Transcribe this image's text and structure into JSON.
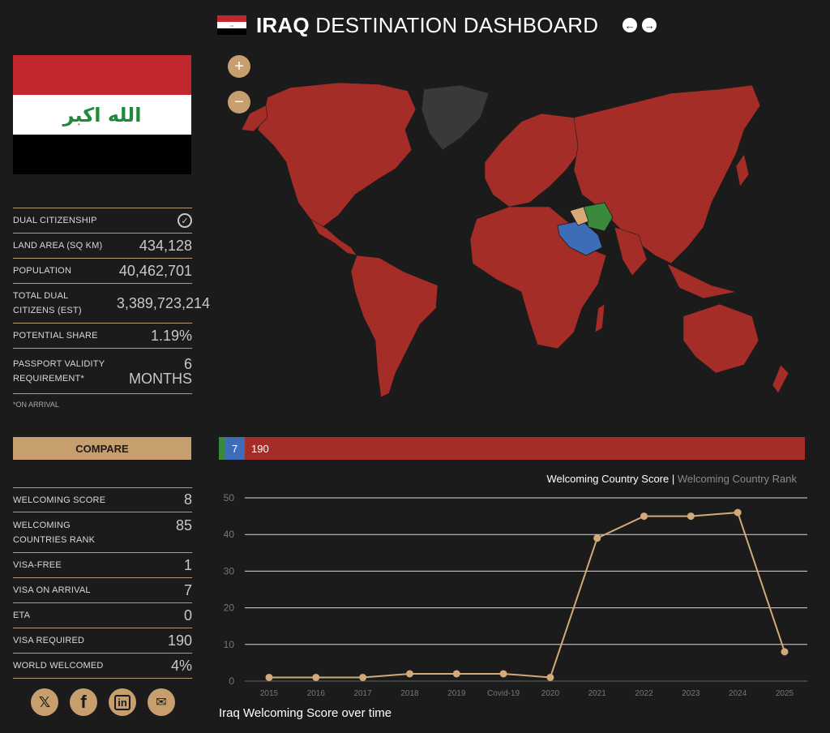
{
  "header": {
    "title_bold": "IRAQ",
    "title_rest": " DESTINATION DASHBOARD",
    "prev_icon": "arrow-left-icon",
    "next_icon": "arrow-right-icon"
  },
  "flag": {
    "colors": [
      "#c1272d",
      "#ffffff",
      "#000000"
    ],
    "emblem_color": "#1e8a3a",
    "emblem_text": "الله اكبر"
  },
  "profile": {
    "dual_citizenship": {
      "label": "DUAL CITIZENSHIP",
      "icon": "check-circle-icon"
    },
    "land_area": {
      "label": "LAND AREA (SQ KM)",
      "value": "434,128"
    },
    "population": {
      "label": "POPULATION",
      "value": "40,462,701"
    },
    "total_dual": {
      "label": "TOTAL DUAL CITIZENS (EST)",
      "value": "3,389,723,214"
    },
    "potential_share": {
      "label": "POTENTIAL SHARE",
      "value": "1.19%"
    },
    "passport_validity": {
      "label": "PASSPORT VALIDITY REQUIREMENT*",
      "value": "6 MONTHS"
    },
    "note": "*ON ARRIVAL"
  },
  "compare_label": "COMPARE",
  "welcoming": {
    "score": {
      "label": "WELCOMING SCORE",
      "value": "8"
    },
    "rank": {
      "label": "WELCOMING COUNTRIES RANK",
      "value": "85"
    },
    "visa_free": {
      "label": "VISA-FREE",
      "value": "1"
    },
    "visa_on_arrival": {
      "label": "VISA ON ARRIVAL",
      "value": "7"
    },
    "eta": {
      "label": "ETA",
      "value": "0"
    },
    "visa_required": {
      "label": "VISA REQUIRED",
      "value": "190"
    },
    "world_welcomed": {
      "label": "WORLD WELCOMED",
      "value": "4%"
    }
  },
  "socials": [
    "x-icon",
    "facebook-icon",
    "linkedin-icon",
    "mail-icon"
  ],
  "map": {
    "zoom_in": "+",
    "zoom_out": "−",
    "colors": {
      "visa_required": "#a52d27",
      "visa_on_arrival": "#3e6db8",
      "visa_free": "#3a8a3e",
      "self": "#d9a877",
      "no_data": "#3a3939"
    }
  },
  "split_bar": {
    "segments": [
      {
        "key": "visa_free",
        "value": 1,
        "label": "",
        "color": "#3a8a3e"
      },
      {
        "key": "visa_on_arrival",
        "value": 7,
        "label": "7",
        "color": "#3e6db8"
      },
      {
        "key": "visa_required",
        "value": 190,
        "label": "190",
        "color": "#a52d27"
      }
    ]
  },
  "legend": {
    "active": "Welcoming Country Score",
    "separator": " | ",
    "inactive": "Welcoming Country Rank"
  },
  "caption": "Iraq Welcoming Score over time",
  "chart_data": {
    "type": "line",
    "categories": [
      "2015",
      "2016",
      "2017",
      "2018",
      "2019",
      "Covid-19",
      "2020",
      "2021",
      "2022",
      "2023",
      "2024",
      "2025"
    ],
    "series": [
      {
        "name": "Welcoming Country Score",
        "values": [
          1,
          1,
          1,
          2,
          2,
          2,
          1,
          39,
          45,
          45,
          46,
          8
        ],
        "color": "#d2a97a"
      }
    ],
    "ylim": [
      0,
      50
    ],
    "yticks": [
      0,
      10,
      20,
      30,
      40,
      50
    ],
    "grid": true
  }
}
